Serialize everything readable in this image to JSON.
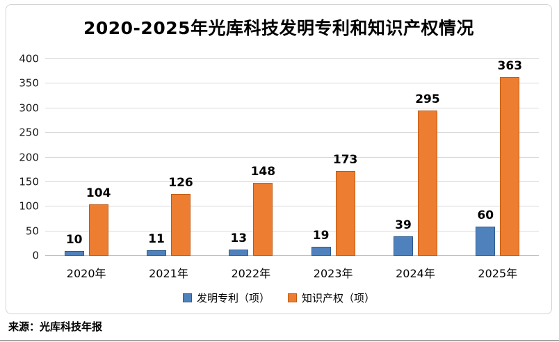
{
  "chart_data": {
    "type": "bar",
    "title": "2020-2025年光库科技发明专利和知识产权情况",
    "categories": [
      "2020年",
      "2021年",
      "2022年",
      "2023年",
      "2024年",
      "2025年"
    ],
    "series": [
      {
        "key": "invention-patents",
        "name": "发明专利（项）",
        "values": [
          10,
          11,
          13,
          19,
          39,
          60
        ],
        "color": "#4f81bd",
        "border": "#2e5b8f"
      },
      {
        "key": "intellectual-property",
        "name": "知识产权（项）",
        "values": [
          104,
          126,
          148,
          173,
          295,
          363
        ],
        "color": "#ed7d31",
        "border": "#c05a11"
      }
    ],
    "xlabel": "",
    "ylabel": "",
    "ylim": [
      0,
      400
    ],
    "ytick_step": 50,
    "grid": true,
    "legend_position": "bottom"
  },
  "source": {
    "text": "来源：光库科技年报"
  }
}
